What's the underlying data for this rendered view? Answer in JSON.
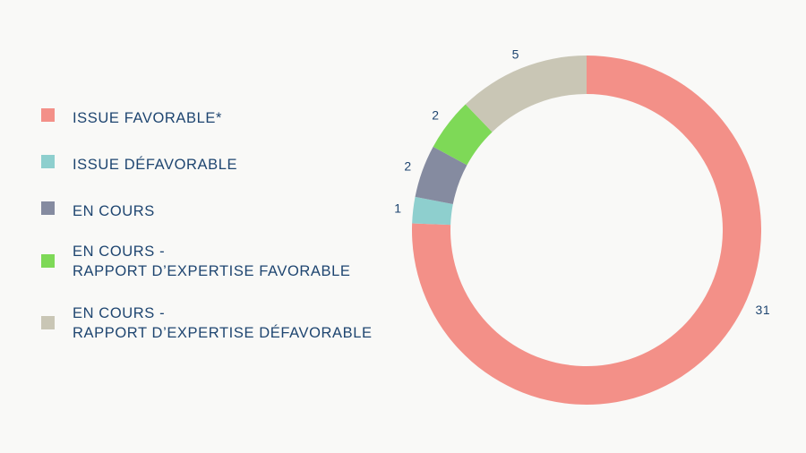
{
  "chart_data": {
    "type": "pie",
    "style": "donut",
    "title": "",
    "categories": [
      "ISSUE FAVORABLE*",
      "ISSUE DÉFAVORABLE",
      "EN COURS",
      "EN COURS -\nRAPPORT D’EXPERTISE FAVORABLE",
      "EN COURS -\nRAPPORT D’EXPERTISE DÉFAVORABLE"
    ],
    "values": [
      31,
      1,
      2,
      2,
      5
    ],
    "data_labels": [
      "31",
      "1",
      "2",
      "2",
      "5"
    ],
    "colors": [
      "#f39088",
      "#8ecfce",
      "#858ba0",
      "#7ed957",
      "#c9c6b5"
    ],
    "legend_position": "left"
  }
}
